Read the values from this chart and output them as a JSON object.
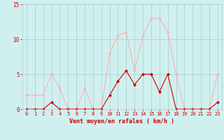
{
  "x": [
    0,
    1,
    2,
    3,
    4,
    5,
    6,
    7,
    8,
    9,
    10,
    11,
    12,
    13,
    14,
    15,
    16,
    17,
    18,
    19,
    20,
    21,
    22,
    23
  ],
  "rafales": [
    2,
    2,
    2,
    5,
    3,
    0,
    0,
    3,
    0,
    0,
    8,
    10.5,
    11,
    5.5,
    10.5,
    13,
    13,
    11,
    5,
    0,
    0,
    0,
    0,
    5
  ],
  "moyen": [
    0,
    0,
    0,
    1,
    0,
    0,
    0,
    0,
    0,
    0,
    2,
    4,
    5.5,
    3.5,
    5,
    5,
    2.5,
    5,
    0,
    0,
    0,
    0,
    0,
    1
  ],
  "xlabel": "Vent moyen/en rafales ( km/h )",
  "ylim": [
    0,
    15
  ],
  "xlim": [
    -0.5,
    23.5
  ],
  "yticks": [
    0,
    5,
    10,
    15
  ],
  "xticks": [
    0,
    1,
    2,
    3,
    4,
    5,
    6,
    7,
    8,
    9,
    10,
    11,
    12,
    13,
    14,
    15,
    16,
    17,
    18,
    19,
    20,
    21,
    22,
    23
  ],
  "color_rafales": "#FFB0B0",
  "color_moyen": "#CC0000",
  "bg_color": "#D0F0F0",
  "grid_color": "#AACCCC",
  "text_color": "#CC0000"
}
